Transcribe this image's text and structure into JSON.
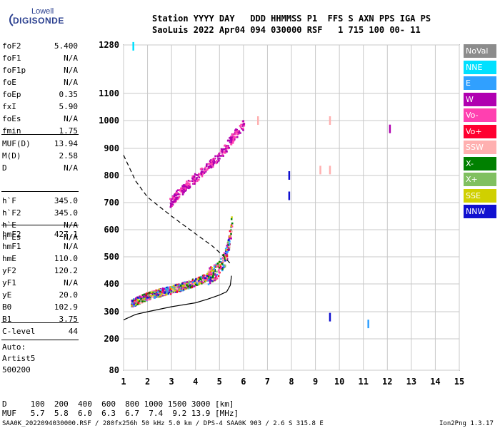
{
  "logo": {
    "top": "Lowell",
    "main": "DIGISONDE"
  },
  "header": {
    "line1": "Station YYYY DAY   DDD HHMMSS P1  FFS S AXN PPS IGA PS",
    "line2": "SaoLuis 2022 Apr04 094 030000 RSF   1 715 100 00- 11"
  },
  "params_group1": [
    {
      "name": "foF2",
      "value": "5.400"
    },
    {
      "name": "foF1",
      "value": "N/A"
    },
    {
      "name": "foF1p",
      "value": "N/A"
    },
    {
      "name": "foE",
      "value": "N/A"
    },
    {
      "name": "foEp",
      "value": "0.35"
    },
    {
      "name": "fxI",
      "value": "5.90"
    },
    {
      "name": "foEs",
      "value": "N/A"
    },
    {
      "name": "fmin",
      "value": "1.75"
    }
  ],
  "params_group2": [
    {
      "name": "MUF(D)",
      "value": "13.94"
    },
    {
      "name": "M(D)",
      "value": "2.58"
    },
    {
      "name": "D",
      "value": "N/A"
    }
  ],
  "params_group3": [
    {
      "name": "h`F",
      "value": "345.0"
    },
    {
      "name": "h`F2",
      "value": "345.0"
    },
    {
      "name": "h`E",
      "value": "N/A"
    },
    {
      "name": "h`Es",
      "value": "N/A"
    }
  ],
  "params_group4": [
    {
      "name": "hmF2",
      "value": "427.1"
    },
    {
      "name": "hmF1",
      "value": "N/A"
    },
    {
      "name": "hmE",
      "value": "110.0"
    },
    {
      "name": "yF2",
      "value": "120.2"
    },
    {
      "name": "yF1",
      "value": "N/A"
    },
    {
      "name": "yE",
      "value": "20.0"
    },
    {
      "name": "B0",
      "value": "102.9"
    },
    {
      "name": "B1",
      "value": "3.75"
    }
  ],
  "clevel": {
    "name": "C-level",
    "value": "44"
  },
  "auto": [
    "Auto:",
    "Artist5",
    "500200"
  ],
  "legend": [
    {
      "label": "NoVal",
      "color": "#8c8c8c"
    },
    {
      "label": "NNE",
      "color": "#00e0ff"
    },
    {
      "label": "E",
      "color": "#30a0ff"
    },
    {
      "label": "W",
      "color": "#b000b0"
    },
    {
      "label": "Vo-",
      "color": "#ff40b0"
    },
    {
      "label": "Vo+",
      "color": "#ff0030"
    },
    {
      "label": "SSW",
      "color": "#ffb0b0"
    },
    {
      "label": "X-",
      "color": "#008000"
    },
    {
      "label": "X+",
      "color": "#80c060"
    },
    {
      "label": "SSE",
      "color": "#d0d000"
    },
    {
      "label": "NNW",
      "color": "#1010d0"
    }
  ],
  "bottom": {
    "d_line": "D     100  200  400  600  800 1000 1500 3000 [km]",
    "muf_line": "MUF   5.7  5.8  6.0  6.3  6.7  7.4  9.2 13.9 [MHz]",
    "footer_left": "SAA0K_2022094030000.RSF / 280fx256h 50 kHz 5.0 km / DPS-4 SAA0K 903 / 2.6 S 315.8 E",
    "footer_right": "Ion2Png 1.3.17"
  },
  "chart_data": {
    "type": "scatter",
    "xlim": [
      1,
      15
    ],
    "ylim": [
      80,
      1280
    ],
    "xticks": [
      1,
      2,
      3,
      4,
      5,
      6,
      7,
      8,
      9,
      10,
      11,
      12,
      13,
      14,
      15
    ],
    "yticks": [
      80,
      200,
      300,
      400,
      500,
      600,
      700,
      800,
      900,
      1000,
      1100,
      1280
    ],
    "grid": true,
    "traces": [
      {
        "name": "o-trace (virtual height)",
        "color": "#ff40b0",
        "points": [
          [
            1.3,
            330
          ],
          [
            1.6,
            345
          ],
          [
            2.0,
            360
          ],
          [
            2.5,
            372
          ],
          [
            3.0,
            382
          ],
          [
            3.5,
            395
          ],
          [
            4.0,
            410
          ],
          [
            4.4,
            425
          ],
          [
            4.8,
            445
          ],
          [
            5.0,
            465
          ],
          [
            5.2,
            495
          ],
          [
            5.35,
            545
          ],
          [
            5.45,
            600
          ],
          [
            5.5,
            650
          ]
        ]
      },
      {
        "name": "second-hop",
        "color": "#b000b0",
        "points": [
          [
            2.9,
            700
          ],
          [
            3.3,
            740
          ],
          [
            3.8,
            780
          ],
          [
            4.3,
            820
          ],
          [
            4.8,
            860
          ],
          [
            5.2,
            900
          ],
          [
            5.6,
            950
          ],
          [
            6.0,
            990
          ]
        ]
      }
    ],
    "profile_line": [
      [
        1.0,
        270
      ],
      [
        1.5,
        290
      ],
      [
        2.0,
        300
      ],
      [
        3.0,
        318
      ],
      [
        4.0,
        332
      ],
      [
        4.5,
        345
      ],
      [
        5.0,
        360
      ],
      [
        5.3,
        372
      ],
      [
        5.45,
        395
      ],
      [
        5.5,
        430
      ]
    ],
    "profile_dashed": [
      [
        1.0,
        875
      ],
      [
        1.5,
        780
      ],
      [
        2.0,
        720
      ],
      [
        3.0,
        650
      ],
      [
        4.0,
        585
      ],
      [
        4.7,
        540
      ],
      [
        5.2,
        500
      ],
      [
        5.5,
        470
      ]
    ],
    "isolated_marks": [
      {
        "x": 7.9,
        "y": 800,
        "color": "#1010d0"
      },
      {
        "x": 7.9,
        "y": 725,
        "color": "#1010d0"
      },
      {
        "x": 9.2,
        "y": 820,
        "color": "#ffb0b0"
      },
      {
        "x": 9.6,
        "y": 1000,
        "color": "#ffb0b0"
      },
      {
        "x": 9.6,
        "y": 820,
        "color": "#ffb0b0"
      },
      {
        "x": 9.6,
        "y": 280,
        "color": "#1010d0"
      },
      {
        "x": 11.2,
        "y": 255,
        "color": "#30a0ff"
      },
      {
        "x": 12.1,
        "y": 970,
        "color": "#b000b0"
      },
      {
        "x": 1.4,
        "y": 1275,
        "color": "#00e0ff"
      },
      {
        "x": 6.6,
        "y": 1000,
        "color": "#ffb0b0"
      }
    ]
  }
}
